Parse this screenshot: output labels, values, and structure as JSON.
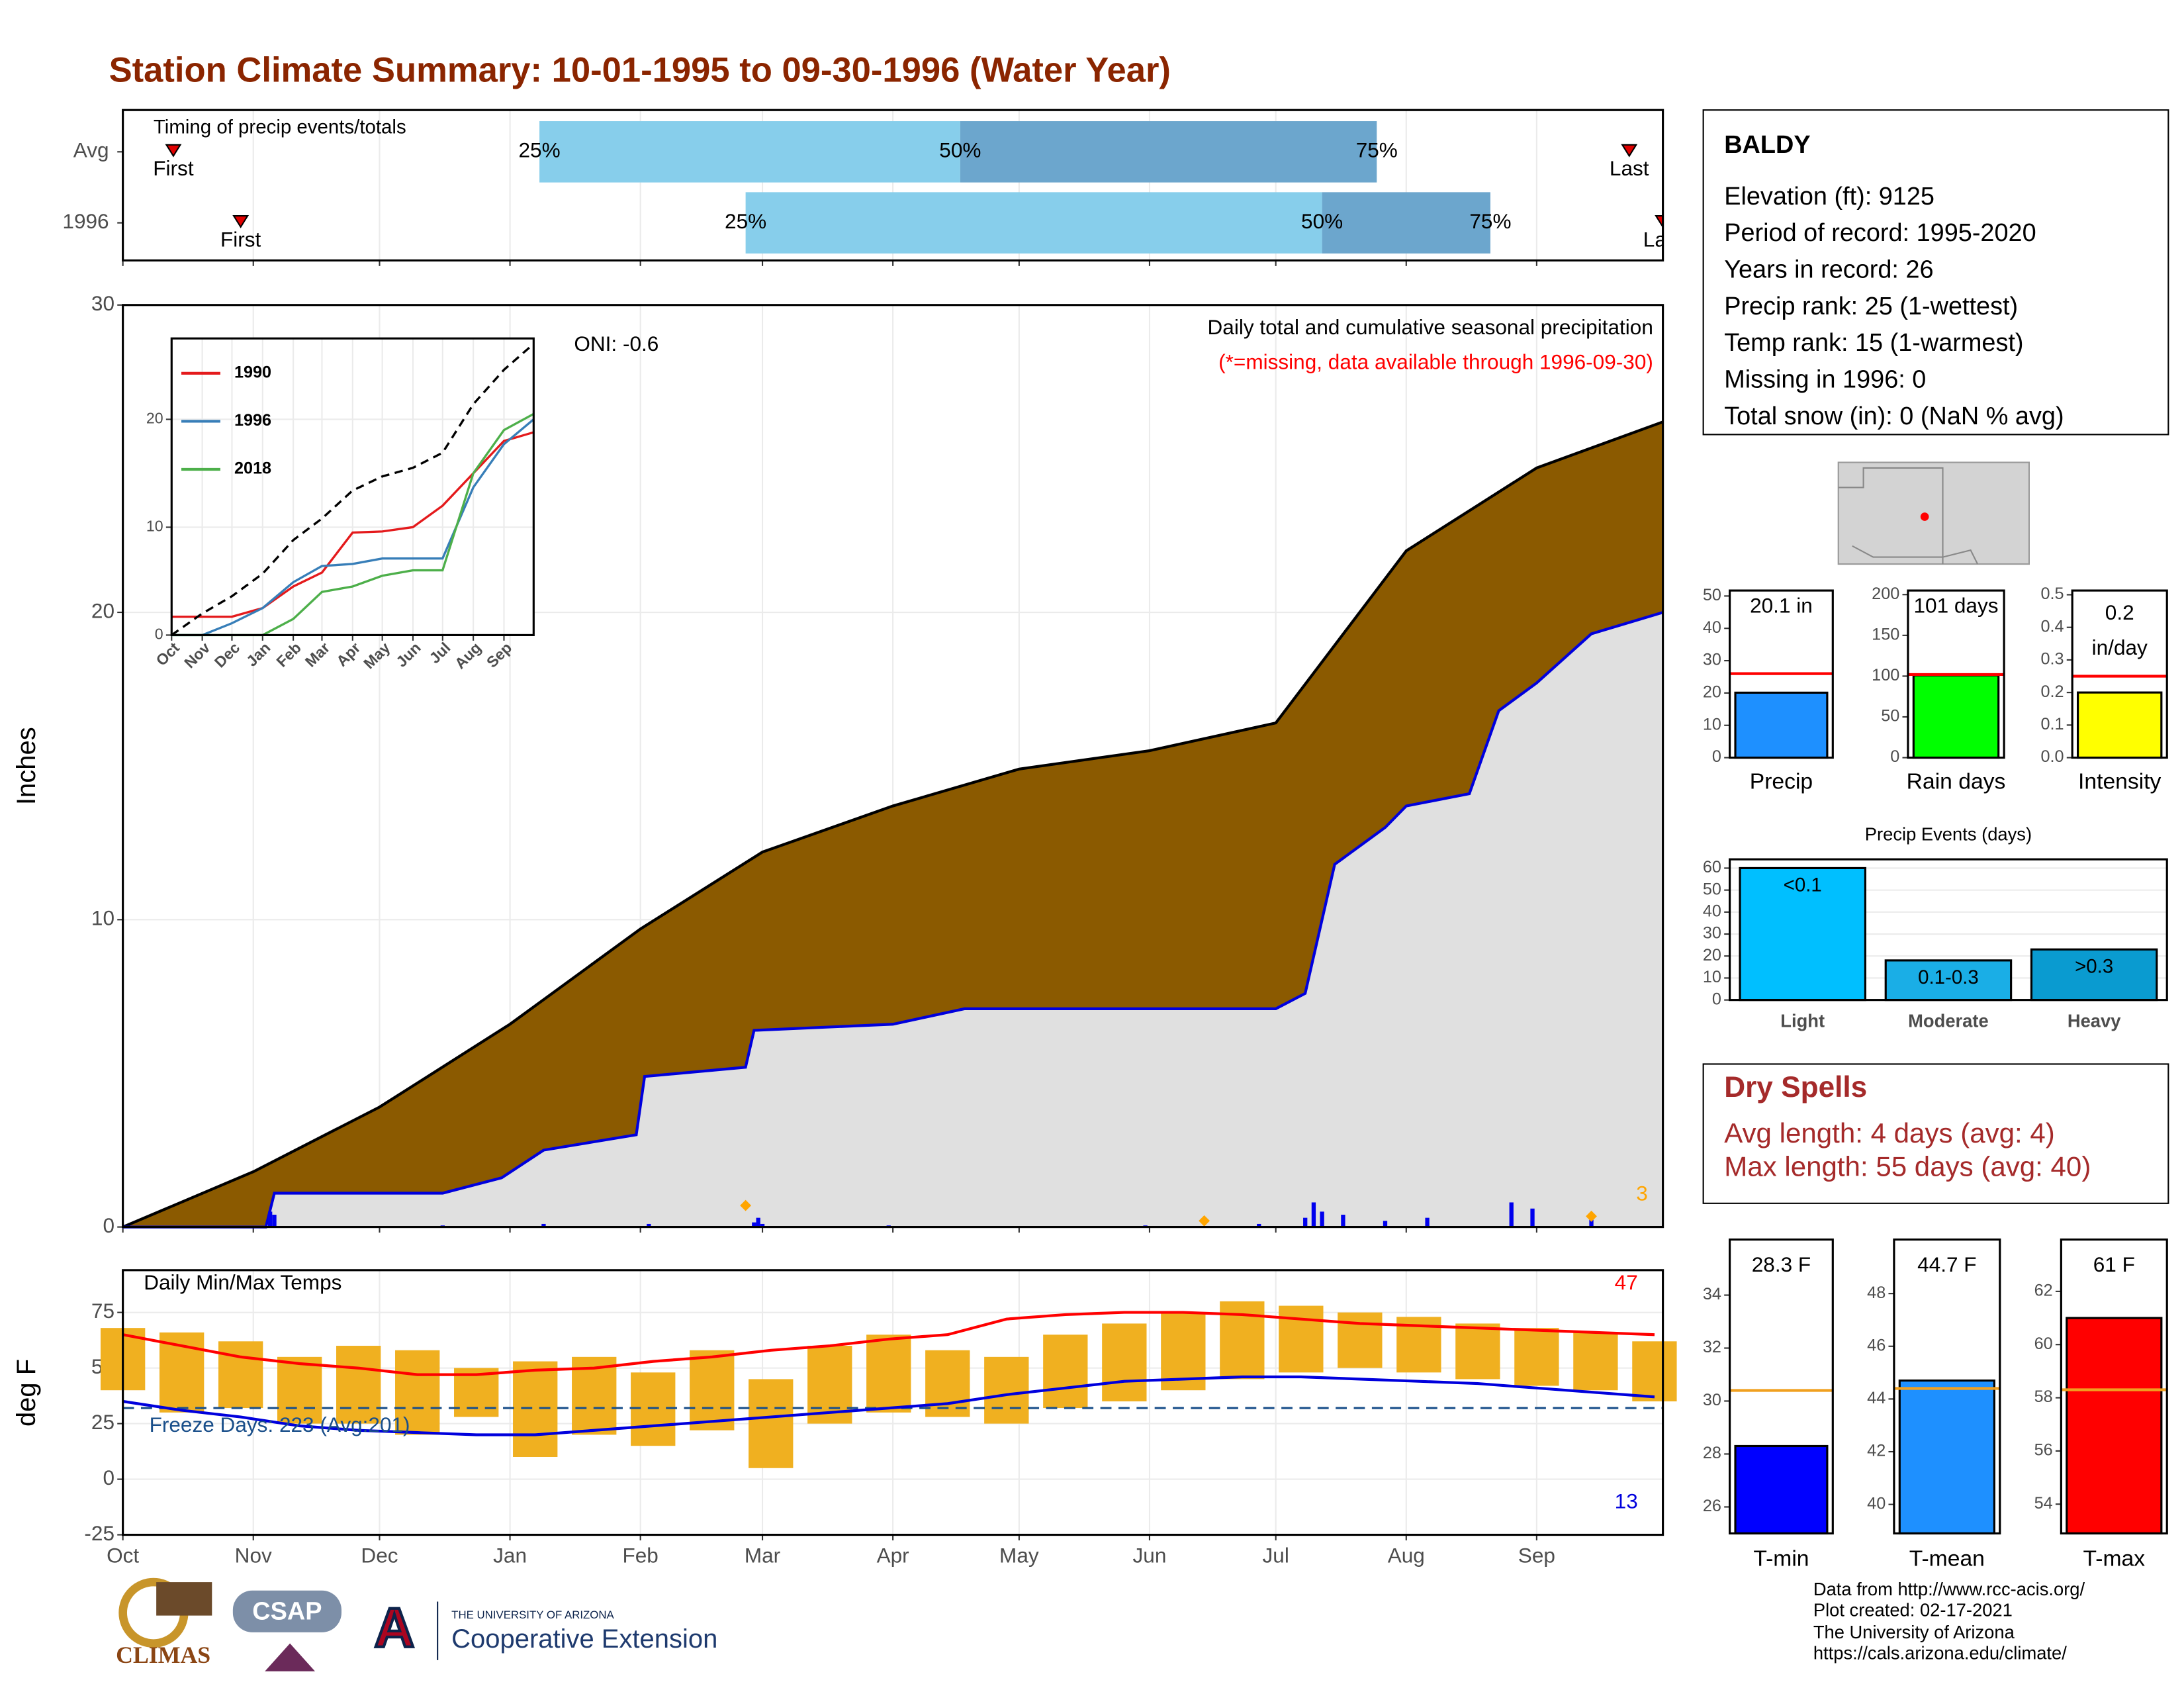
{
  "title": "Station Climate Summary: 10-01-1995 to 09-30-1996 (Water Year)",
  "chart_data": [
    {
      "type": "range",
      "title": "Timing of precip events/totals",
      "categories": [
        "Avg",
        "1996"
      ],
      "first": [
        12,
        28
      ],
      "q25": [
        99,
        148
      ],
      "q50": [
        199,
        285
      ],
      "q75": [
        298,
        325
      ],
      "last": [
        358,
        366
      ],
      "first_label": "First",
      "last_label": "Last",
      "q_labels": [
        "25%",
        "50%",
        "75%"
      ],
      "colors": [
        "#87ceeb",
        "#6ca6cd"
      ],
      "marker_color": "#e00000",
      "xlim": [
        0,
        366
      ],
      "xticks": [
        0,
        31,
        61,
        92,
        123,
        152,
        183,
        213,
        244,
        274,
        305,
        336
      ],
      "grid": true
    },
    {
      "type": "area",
      "title": "Daily total and cumulative seasonal precipitation",
      "subtitle": "(*=missing, data available through 1996-09-30)",
      "annotation": "ONI: -0.6",
      "ylabel": "Inches",
      "note_label": "3",
      "xlim": [
        0,
        366
      ],
      "xticks": [
        0,
        31,
        61,
        92,
        123,
        152,
        183,
        213,
        244,
        274,
        305,
        336
      ],
      "ylim": [
        0,
        30
      ],
      "yticks": [
        0,
        10,
        20,
        30
      ],
      "grid": true,
      "series": [
        {
          "color": "#8b5a00",
          "line_color": "#000000",
          "x": [
            0,
            31,
            61,
            92,
            123,
            152,
            183,
            213,
            244,
            274,
            305,
            336,
            366
          ],
          "values": [
            0,
            1.8,
            3.9,
            6.6,
            9.7,
            12.2,
            13.7,
            14.9,
            15.5,
            16.4,
            22.0,
            24.7,
            26.2
          ]
        },
        {
          "color": "#e0e0e0",
          "line_color": "#0000dd",
          "x": [
            0,
            34,
            36,
            76,
            90,
            100,
            122,
            124,
            148,
            150,
            183,
            200,
            274,
            281,
            288,
            300,
            305,
            320,
            327,
            336,
            349,
            366
          ],
          "values": [
            0,
            0,
            1.1,
            1.1,
            1.6,
            2.5,
            3.0,
            4.9,
            5.2,
            6.4,
            6.6,
            7.1,
            7.1,
            7.6,
            11.8,
            13.0,
            13.7,
            14.1,
            16.8,
            17.7,
            19.3,
            20.0
          ]
        }
      ],
      "daily": {
        "color": "#0000ee",
        "x": [
          35,
          36,
          76,
          100,
          125,
          150,
          151,
          152,
          182,
          243,
          270,
          281,
          283,
          285,
          290,
          300,
          310,
          330,
          335,
          349
        ],
        "values": [
          0.5,
          0.4,
          0.05,
          0.1,
          0.1,
          0.15,
          0.3,
          0.1,
          0.05,
          0.05,
          0.1,
          0.3,
          0.8,
          0.5,
          0.4,
          0.2,
          0.3,
          0.8,
          0.6,
          0.3
        ]
      },
      "markers": {
        "color": "#ffa500",
        "x": [
          148,
          257,
          349
        ],
        "values": [
          0.7,
          0.2,
          0.35
        ]
      }
    },
    {
      "type": "line",
      "xlim": [
        0,
        366
      ],
      "ylim": [
        0,
        27.5
      ],
      "yticks": [
        0,
        10,
        20
      ],
      "xticks": [
        {
          "value": 0,
          "label": "Oct"
        },
        {
          "value": 31,
          "label": "Nov"
        },
        {
          "value": 61,
          "label": "Dec"
        },
        {
          "value": 92,
          "label": "Jan"
        },
        {
          "value": 123,
          "label": "Feb"
        },
        {
          "value": 152,
          "label": "Mar"
        },
        {
          "value": 183,
          "label": "Apr"
        },
        {
          "value": 213,
          "label": "May"
        },
        {
          "value": 244,
          "label": "Jun"
        },
        {
          "value": 274,
          "label": "Jul"
        },
        {
          "value": 305,
          "label": "Aug"
        },
        {
          "value": 336,
          "label": "Sep"
        }
      ],
      "x": [
        0,
        31,
        61,
        92,
        123,
        152,
        183,
        213,
        244,
        274,
        305,
        336,
        366
      ],
      "grid": true,
      "series": [
        {
          "name": "1990",
          "color": "#e41a1c",
          "values": [
            1.7,
            1.7,
            1.7,
            2.5,
            4.5,
            5.8,
            9.5,
            9.6,
            10.0,
            12.0,
            15.0,
            18.0,
            18.8
          ]
        },
        {
          "name": "1996",
          "color": "#377eb8",
          "values": [
            0,
            0,
            1.1,
            2.5,
            4.9,
            6.4,
            6.6,
            7.1,
            7.1,
            7.1,
            13.7,
            17.7,
            20.0
          ]
        },
        {
          "name": "2018",
          "color": "#4daf4a",
          "values": [
            0,
            0,
            0,
            0,
            1.5,
            4.0,
            4.5,
            5.5,
            6.0,
            6.0,
            15.0,
            19.0,
            20.5
          ]
        },
        {
          "color": "#000000",
          "dashed": true,
          "values": [
            0,
            2.0,
            3.6,
            5.7,
            8.8,
            10.8,
            13.4,
            14.7,
            15.5,
            16.9,
            21.4,
            24.6,
            27.0
          ]
        }
      ]
    },
    {
      "type": "temp",
      "title": "Daily Min/Max Temps",
      "ylabel": "deg F",
      "freeze_label": "Freeze Days: 223 (Avg:201)",
      "high_label": "47",
      "low_label": "13",
      "xlim": [
        0,
        366
      ],
      "ylim": [
        -25,
        94
      ],
      "yticks": [
        -25,
        0,
        25,
        50,
        75
      ],
      "grid": true,
      "freeze_line": 32,
      "xticks": [
        {
          "value": 0,
          "label": "Oct"
        },
        {
          "value": 31,
          "label": "Nov"
        },
        {
          "value": 61,
          "label": "Dec"
        },
        {
          "value": 92,
          "label": "Jan"
        },
        {
          "value": 123,
          "label": "Feb"
        },
        {
          "value": 152,
          "label": "Mar"
        },
        {
          "value": 183,
          "label": "Apr"
        },
        {
          "value": 213,
          "label": "May"
        },
        {
          "value": 244,
          "label": "Jun"
        },
        {
          "value": 274,
          "label": "Jul"
        },
        {
          "value": 305,
          "label": "Aug"
        },
        {
          "value": 336,
          "label": "Sep"
        }
      ],
      "x": [
        0,
        14,
        28,
        42,
        56,
        70,
        84,
        98,
        112,
        126,
        140,
        154,
        168,
        182,
        196,
        210,
        224,
        238,
        252,
        266,
        280,
        294,
        308,
        322,
        336,
        350,
        364
      ],
      "daily_max": [
        68,
        66,
        62,
        55,
        60,
        58,
        50,
        53,
        55,
        48,
        58,
        45,
        60,
        65,
        58,
        55,
        65,
        70,
        75,
        80,
        78,
        75,
        73,
        70,
        68,
        66,
        62
      ],
      "daily_min": [
        40,
        30,
        32,
        25,
        25,
        20,
        28,
        10,
        20,
        15,
        22,
        5,
        25,
        30,
        28,
        25,
        32,
        35,
        40,
        45,
        48,
        50,
        48,
        45,
        42,
        40,
        35
      ],
      "avg_max": [
        65,
        60,
        55,
        52,
        50,
        47,
        47,
        49,
        50,
        53,
        55,
        58,
        60,
        63,
        65,
        72,
        74,
        75,
        75,
        74,
        72,
        70,
        69,
        68,
        67,
        66,
        65
      ],
      "avg_min": [
        35,
        31,
        28,
        24,
        22,
        21,
        20,
        20,
        22,
        24,
        26,
        28,
        30,
        32,
        34,
        38,
        41,
        44,
        45,
        46,
        46,
        45,
        44,
        43,
        41,
        39,
        37
      ],
      "bar_color": "#f0b020",
      "max_color": "#ff0000",
      "min_color": "#0000dd",
      "freeze_color": "#1a4f8a"
    },
    {
      "type": "single",
      "label": "Precip",
      "value": 20.1,
      "value_label": "20.1 in",
      "avg": 26,
      "color": "#1e90ff",
      "avg_color": "#ff0000",
      "ylim": [
        0,
        51.7
      ],
      "yticks": [
        0,
        10,
        20,
        30,
        40,
        50
      ]
    },
    {
      "type": "single",
      "label": "Rain days",
      "value": 101,
      "value_label": "101 days",
      "avg": 102,
      "color": "#00ff00",
      "avg_color": "#ff0000",
      "ylim": [
        0,
        205
      ],
      "yticks": [
        0,
        50,
        100,
        150,
        200
      ]
    },
    {
      "type": "single",
      "label": "Intensity",
      "value": 0.2,
      "value_label": "0.2",
      "unit_label": "in/day",
      "avg": 0.25,
      "color": "#ffff00",
      "avg_color": "#ff0000",
      "ylim": [
        0,
        0.513
      ],
      "yticks": [
        {
          "value": 0,
          "label": "0.0"
        },
        {
          "value": 0.1,
          "label": "0.1"
        },
        {
          "value": 0.2,
          "label": "0.2"
        },
        {
          "value": 0.3,
          "label": "0.3"
        },
        {
          "value": 0.4,
          "label": "0.4"
        },
        {
          "value": 0.5,
          "label": "0.5"
        }
      ]
    },
    {
      "type": "bar",
      "title": "Precip Events (days)",
      "categories": [
        "Light",
        "Moderate",
        "Heavy"
      ],
      "bar_labels": [
        "<0.1",
        "0.1-0.3",
        ">0.3"
      ],
      "values": [
        60,
        18,
        23
      ],
      "colors": [
        "#00bfff",
        "#1aaee6",
        "#0a9bd0"
      ],
      "ylim": [
        0,
        64
      ],
      "yticks": [
        0,
        10,
        20,
        30,
        40,
        50,
        60
      ],
      "grid": true
    },
    {
      "type": "single",
      "label": "T-min",
      "value": 28.3,
      "value_label": "28.3 F",
      "avg": 30.4,
      "color": "#0000ff",
      "avg_color": "#f0a020",
      "ylim": [
        25,
        36.1
      ],
      "yticks": [
        26,
        28,
        30,
        32,
        34
      ]
    },
    {
      "type": "single",
      "label": "T-mean",
      "value": 44.7,
      "value_label": "44.7 F",
      "avg": 44.4,
      "color": "#1e90ff",
      "avg_color": "#f0a020",
      "ylim": [
        38.9,
        50.05
      ],
      "yticks": [
        40,
        42,
        44,
        46,
        48
      ]
    },
    {
      "type": "single",
      "label": "T-max",
      "value": 61,
      "value_label": "61 F",
      "avg": 58.3,
      "color": "#ff0000",
      "avg_color": "#f0a020",
      "ylim": [
        52.9,
        63.95
      ],
      "yticks": [
        54,
        56,
        58,
        60,
        62
      ]
    }
  ],
  "station": {
    "name": "BALDY",
    "lines": [
      "Elevation (ft): 9125",
      "Period of record: 1995-2020",
      "Years in record: 26",
      "Precip rank: 25 (1-wettest)",
      "Temp rank: 15 (1-warmest)",
      "Missing in 1996: 0",
      "Total snow (in): 0 (NaN % avg)"
    ]
  },
  "dry_spells": {
    "title": "Dry Spells",
    "lines": [
      "Avg length: 4 days (avg: 4)",
      "Max length: 55 days (avg: 40)"
    ]
  },
  "footer": [
    "Data from http://www.rcc-acis.org/",
    "Plot created: 02-17-2021",
    "The University of Arizona",
    "https://cals.arizona.edu/climate/"
  ],
  "logos": {
    "climas": "CLIMAS",
    "csap": "CSAP",
    "ua": "THE UNIVERSITY OF ARIZONA",
    "ext": "Cooperative Extension"
  }
}
